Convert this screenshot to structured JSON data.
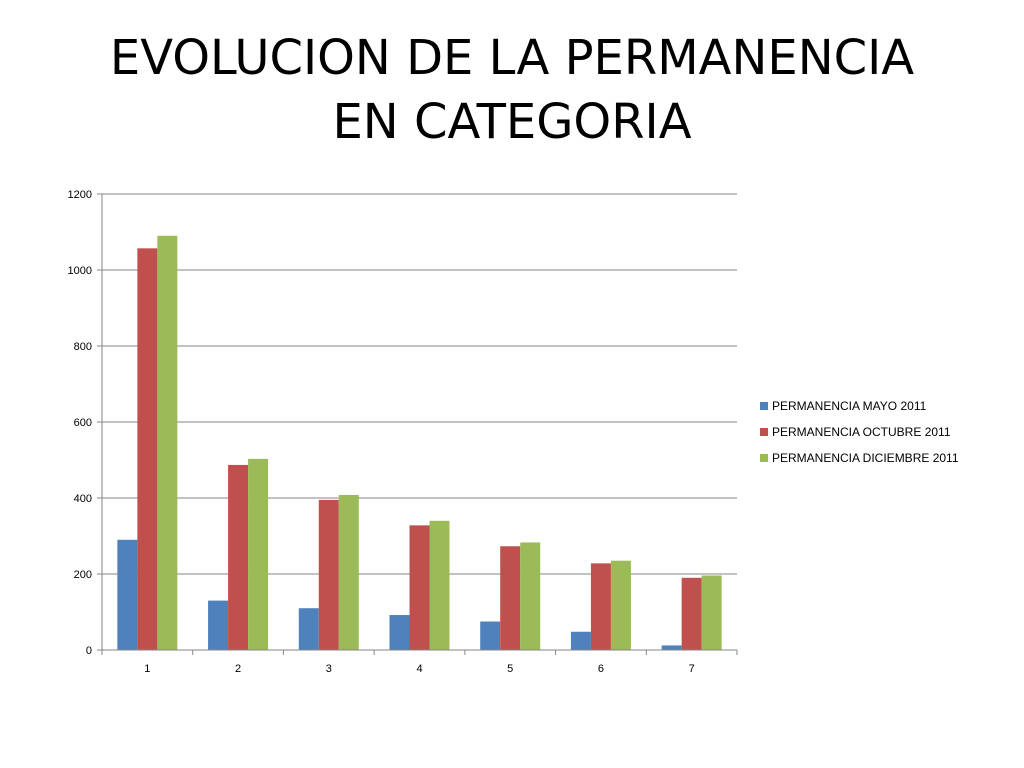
{
  "slide": {
    "title_line1": "EVOLUCION DE LA PERMANENCIA",
    "title_line2": "EN CATEGORIA"
  },
  "chart_data": {
    "type": "bar",
    "categories": [
      "1",
      "2",
      "3",
      "4",
      "5",
      "6",
      "7"
    ],
    "series": [
      {
        "name": "PERMANENCIA MAYO 2011",
        "color": "#4F81BD",
        "values": [
          290,
          130,
          110,
          92,
          75,
          48,
          12
        ]
      },
      {
        "name": "PERMANENCIA OCTUBRE 2011",
        "color": "#C0504D",
        "values": [
          1057,
          487,
          395,
          328,
          273,
          228,
          190
        ]
      },
      {
        "name": "PERMANENCIA DICIEMBRE 2011",
        "color": "#9BBB59",
        "values": [
          1090,
          503,
          408,
          340,
          283,
          235,
          196
        ]
      }
    ],
    "yticks": [
      "0",
      "200",
      "400",
      "600",
      "800",
      "1000",
      "1200"
    ],
    "ylim": [
      0,
      1200
    ],
    "grid": true,
    "legend_position": "right",
    "title": "",
    "xlabel": "",
    "ylabel": ""
  }
}
